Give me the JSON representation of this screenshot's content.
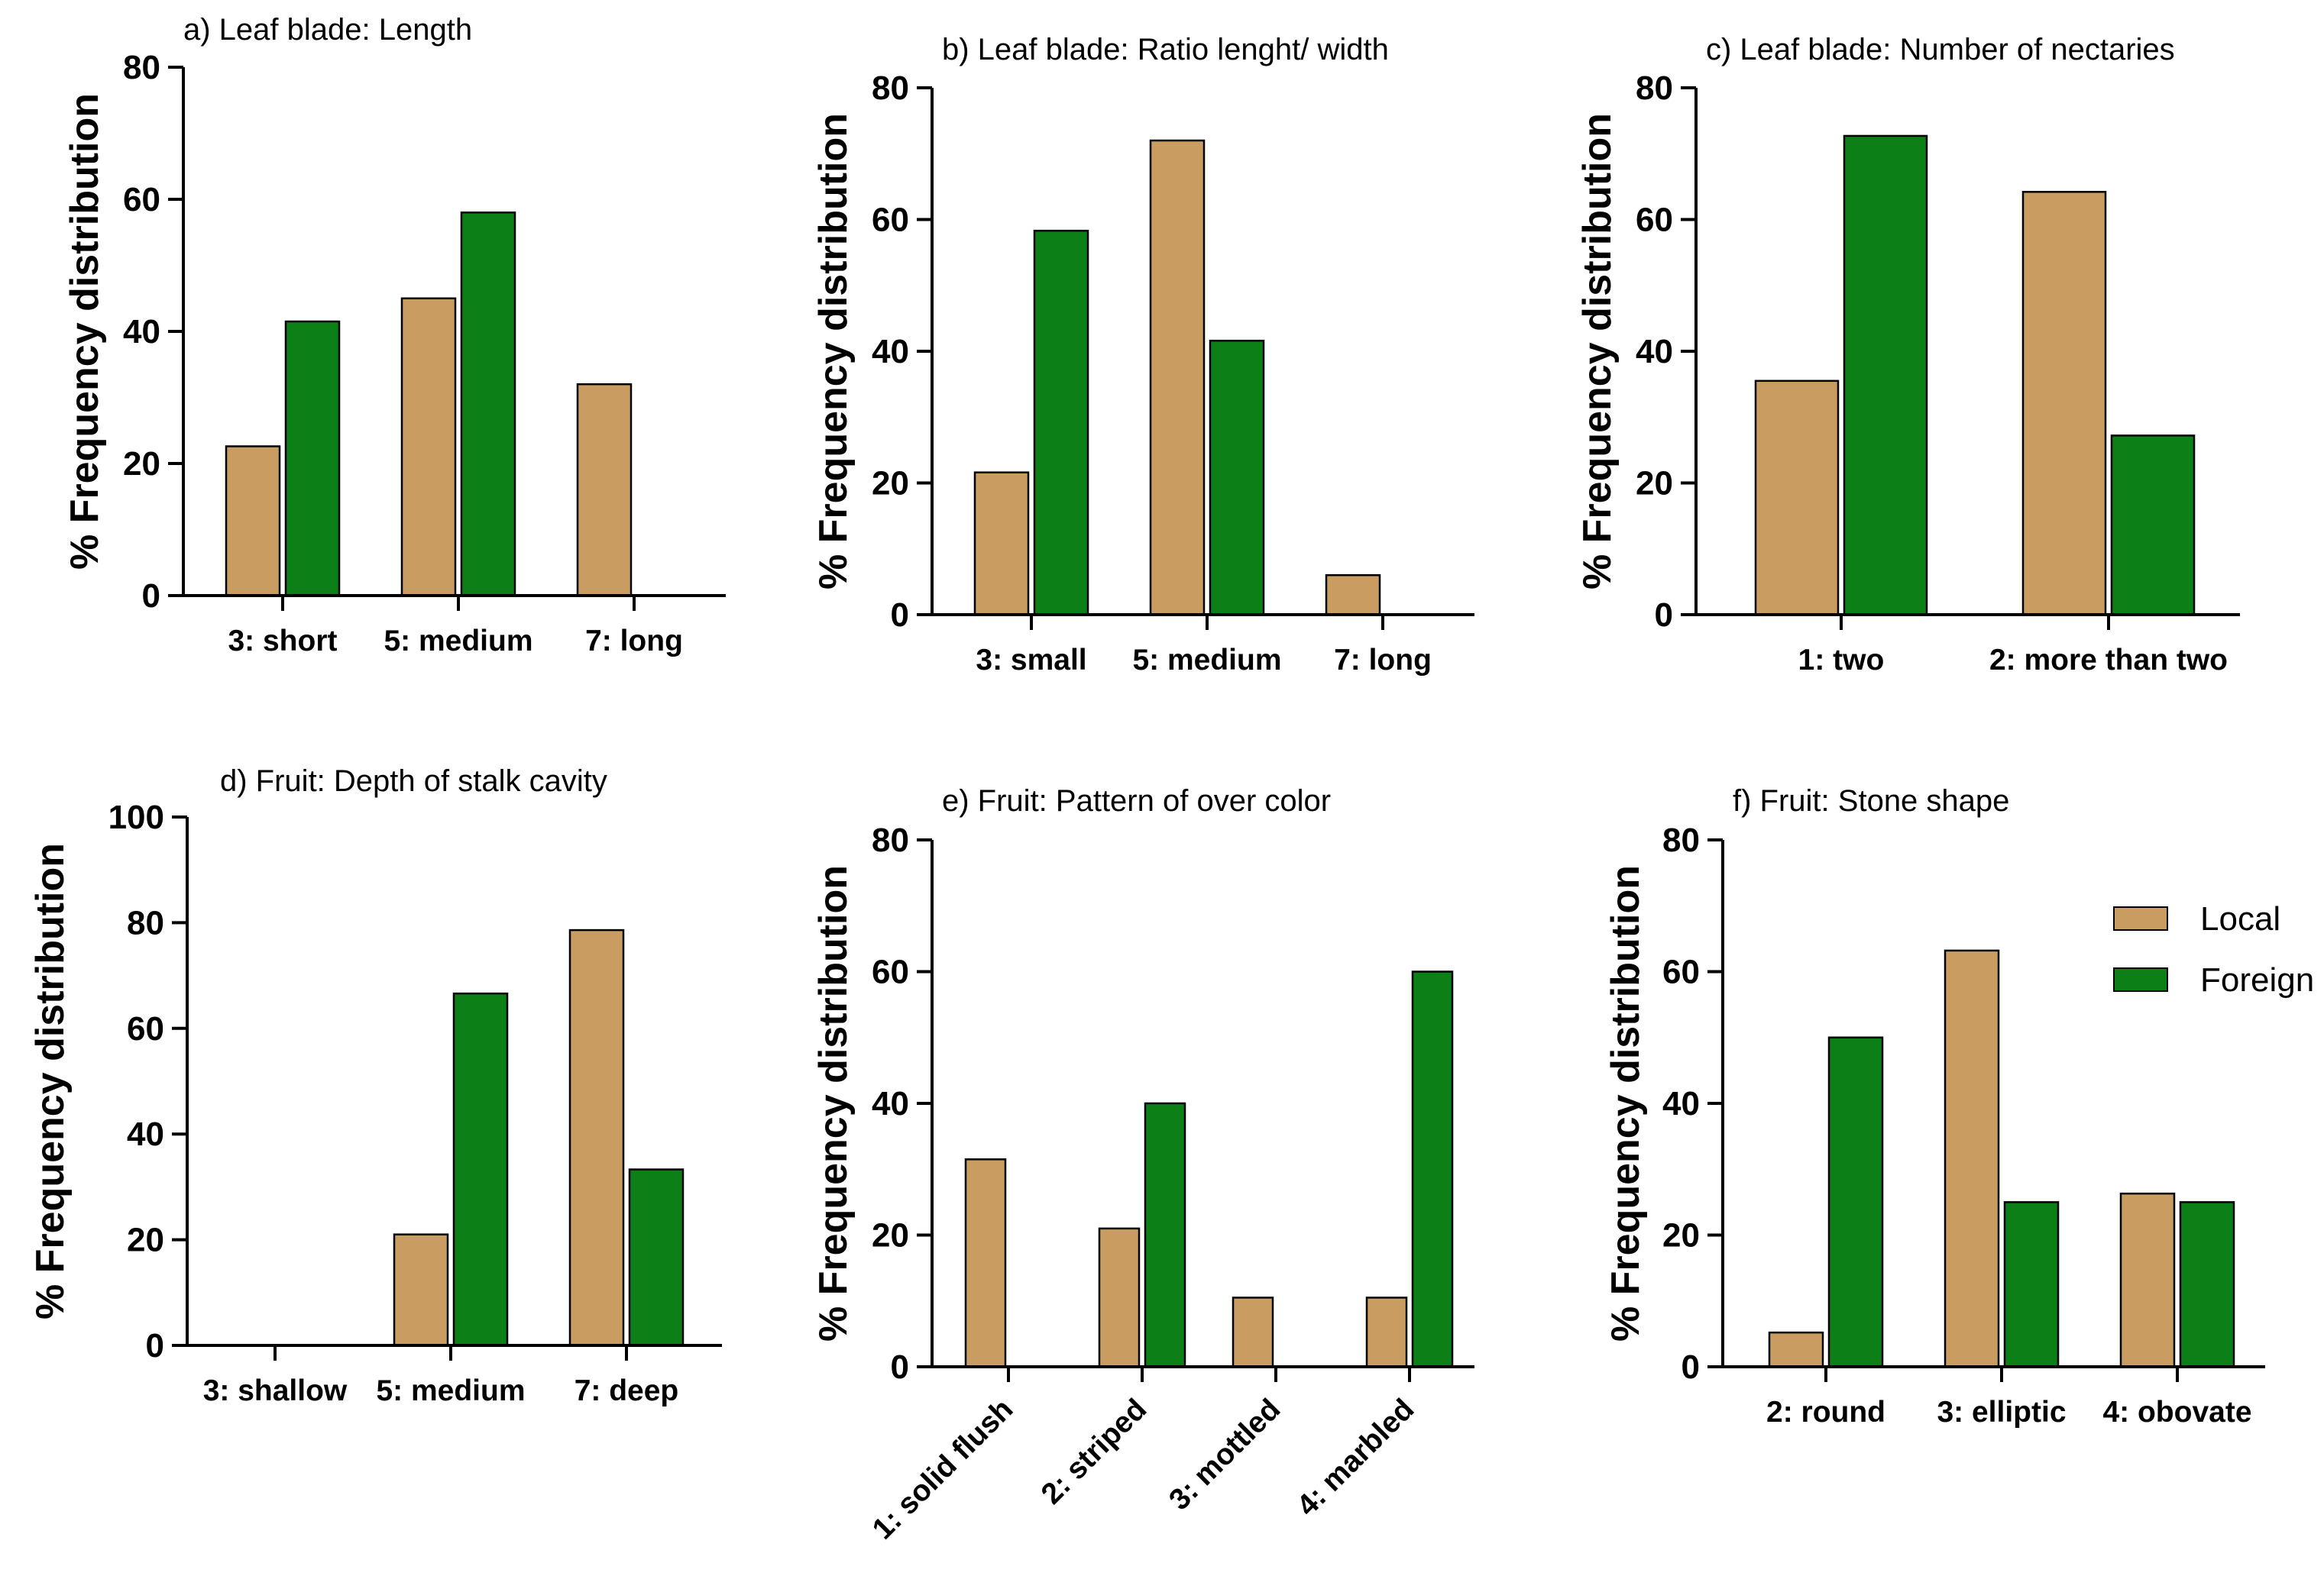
{
  "colors": {
    "local": "#c99d61",
    "foreign": "#0d7f17",
    "axis": "#000000"
  },
  "legend": {
    "local": "Local",
    "foreign": "Foreign",
    "placement": "right of panel f"
  },
  "chart_data": [
    {
      "type": "bar",
      "title": "a) Leaf blade: Length",
      "ylabel": "% Frequency distribution",
      "xlabel": "",
      "ylim": [
        0,
        80
      ],
      "yticks": [
        0,
        20,
        40,
        60,
        80
      ],
      "categories": [
        "3: short",
        "5: medium",
        "7: long"
      ],
      "series": [
        {
          "name": "Local",
          "values": [
            22.6,
            45,
            32
          ]
        },
        {
          "name": "Foreign",
          "values": [
            41.5,
            58,
            0
          ]
        }
      ]
    },
    {
      "type": "bar",
      "title": "b) Leaf blade: Ratio lenght/ width",
      "ylabel": "% Frequency distribution",
      "xlabel": "",
      "ylim": [
        0,
        80
      ],
      "yticks": [
        0,
        20,
        40,
        60,
        80
      ],
      "categories": [
        "3: small",
        "5: medium",
        "7: long"
      ],
      "series": [
        {
          "name": "Local",
          "values": [
            21.6,
            72,
            6
          ]
        },
        {
          "name": "Foreign",
          "values": [
            58.3,
            41.6,
            0
          ]
        }
      ]
    },
    {
      "type": "bar",
      "title": "c) Leaf blade: Number of nectaries",
      "ylabel": "% Frequency distribution",
      "xlabel": "",
      "ylim": [
        0,
        80
      ],
      "yticks": [
        0,
        20,
        40,
        60,
        80
      ],
      "categories": [
        "1: two",
        "2: more than two"
      ],
      "series": [
        {
          "name": "Local",
          "values": [
            35.5,
            64.2
          ]
        },
        {
          "name": "Foreign",
          "values": [
            72.7,
            27.2
          ]
        }
      ]
    },
    {
      "type": "bar",
      "title": "d) Fruit: Depth of stalk cavity",
      "ylabel": "% Frequency distribution",
      "xlabel": "",
      "ylim": [
        0,
        100
      ],
      "yticks": [
        0,
        20,
        40,
        60,
        80,
        100
      ],
      "categories": [
        "3: shallow",
        "5: medium",
        "7: deep"
      ],
      "series": [
        {
          "name": "Local",
          "values": [
            0,
            21,
            78.6
          ]
        },
        {
          "name": "Foreign",
          "values": [
            0,
            66.6,
            33.3
          ]
        }
      ]
    },
    {
      "type": "bar",
      "title": "e) Fruit: Pattern of over color",
      "ylabel": "% Frequency distribution",
      "xlabel": "",
      "ylim": [
        0,
        80
      ],
      "yticks": [
        0,
        20,
        40,
        60,
        80
      ],
      "categories": [
        "1: solid flush",
        "2: striped",
        "3: mottled",
        "4: marbled"
      ],
      "rotate_xticks": true,
      "series": [
        {
          "name": "Local",
          "values": [
            31.5,
            21,
            10.5,
            10.5
          ]
        },
        {
          "name": "Foreign",
          "values": [
            0,
            40,
            0,
            60
          ]
        }
      ]
    },
    {
      "type": "bar",
      "title": "f) Fruit: Stone shape",
      "ylabel": "% Frequency distribution",
      "xlabel": "",
      "ylim": [
        0,
        80
      ],
      "yticks": [
        0,
        20,
        40,
        60,
        80
      ],
      "categories": [
        "2: round",
        "3: elliptic",
        "4: obovate"
      ],
      "series": [
        {
          "name": "Local",
          "values": [
            5.2,
            63.2,
            26.3
          ]
        },
        {
          "name": "Foreign",
          "values": [
            50,
            25,
            25
          ]
        }
      ]
    }
  ]
}
